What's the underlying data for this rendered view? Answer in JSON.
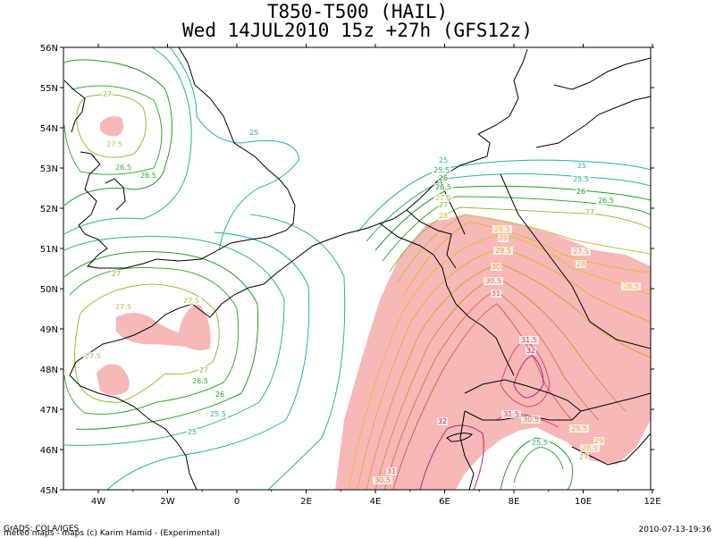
{
  "header": {
    "title": "T850-T500 (HAIL)",
    "subtitle": "Wed 14JUL2010 15z  +27h (GFS12z)"
  },
  "footer": {
    "credit_line1": "GrADS: COLA/IGES",
    "credit_line2": "meteo maps - maps (c) Karim Hamid - (Experimental)",
    "timestamp": "2010-07-13-19:36"
  },
  "axes": {
    "lat_labels": [
      "56N",
      "55N",
      "54N",
      "53N",
      "52N",
      "51N",
      "50N",
      "49N",
      "48N",
      "47N",
      "46N",
      "45N"
    ],
    "lon_labels": [
      "4W",
      "2W",
      "0",
      "2E",
      "4E",
      "6E",
      "8E",
      "10E",
      "12E"
    ]
  },
  "colors": {
    "land_fill": "#ffffff",
    "hail_fill": "#f7b8b8",
    "coast": "#000000",
    "c25": "#20b0b0",
    "c25_5": "#28b878",
    "c26": "#20a020",
    "c26_5": "#30b030",
    "c27": "#90c030",
    "c27_5": "#c0c040",
    "c28": "#d8c030",
    "c29": "#e0b040",
    "c30": "#e09040",
    "c31": "#e06050",
    "c32": "#c02080"
  },
  "contour_labels": [
    {
      "text": "27"
    },
    {
      "text": "27.5"
    },
    {
      "text": "26.5"
    },
    {
      "text": "26.5"
    },
    {
      "text": "25"
    },
    {
      "text": "27"
    },
    {
      "text": "27.5"
    },
    {
      "text": "27.5"
    },
    {
      "text": "27.5"
    },
    {
      "text": "27"
    },
    {
      "text": "26.5"
    },
    {
      "text": "26"
    },
    {
      "text": "25.5"
    },
    {
      "text": "25"
    },
    {
      "text": "25"
    },
    {
      "text": "25.5"
    },
    {
      "text": "26"
    },
    {
      "text": "26.5"
    },
    {
      "text": "27"
    },
    {
      "text": "27.5"
    },
    {
      "text": "28"
    },
    {
      "text": "28.5"
    },
    {
      "text": "29"
    },
    {
      "text": "29.5"
    },
    {
      "text": "30"
    },
    {
      "text": "30.5"
    },
    {
      "text": "31"
    },
    {
      "text": "25"
    },
    {
      "text": "25.5"
    },
    {
      "text": "26"
    },
    {
      "text": "26.5"
    },
    {
      "text": "27"
    },
    {
      "text": "27.5"
    },
    {
      "text": "28"
    },
    {
      "text": "28.5"
    },
    {
      "text": "31.5"
    },
    {
      "text": "32"
    },
    {
      "text": "32"
    },
    {
      "text": "31.5"
    },
    {
      "text": "30.5"
    },
    {
      "text": "31"
    },
    {
      "text": "30.5"
    },
    {
      "text": "29.5"
    },
    {
      "text": "29"
    },
    {
      "text": "28.5"
    },
    {
      "text": "25.5"
    },
    {
      "text": "27"
    }
  ]
}
